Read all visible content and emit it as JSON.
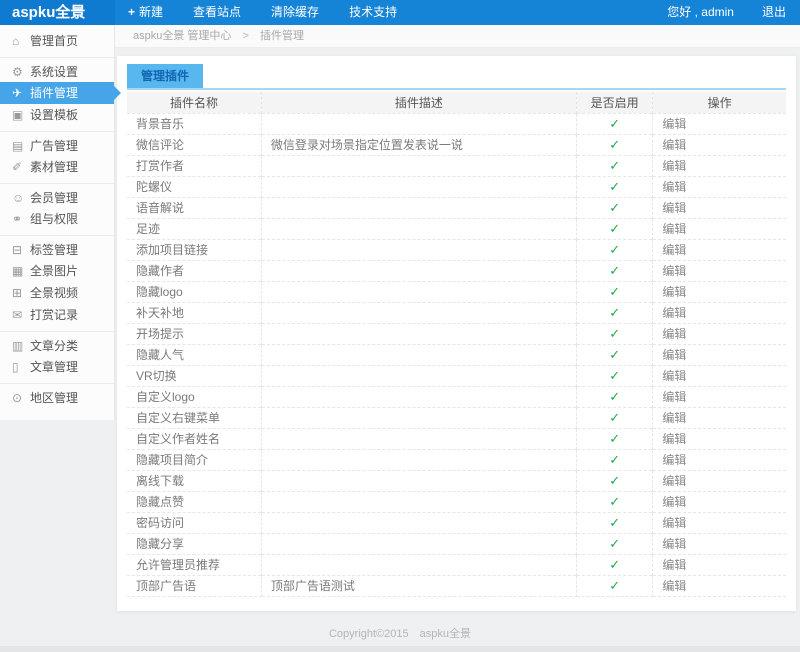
{
  "topbar": {
    "logo": "aspku全景",
    "menu": [
      {
        "id": "new-button",
        "icon_name": "plus-icon",
        "icon": "+",
        "label": "新建"
      },
      {
        "id": "view-site-button",
        "icon_name": "",
        "icon": "",
        "label": "查看站点"
      },
      {
        "id": "clear-cache-button",
        "icon_name": "",
        "icon": "",
        "label": "清除缓存"
      },
      {
        "id": "tech-support-button",
        "icon_name": "",
        "icon": "",
        "label": "技术支持"
      }
    ],
    "greeting": "您好 , admin",
    "logout": "退出"
  },
  "breadcrumb": {
    "prefix": "aspku全景 管理中心",
    "separator": ">",
    "current": "插件管理"
  },
  "sidebar": {
    "items": [
      {
        "id": "sidebar-item-home",
        "icon_name": "home-icon",
        "icon": "⌂",
        "label": "管理首页",
        "flags": ""
      },
      {
        "id": "sidebar-item-system-settings",
        "icon_name": "gear-icon",
        "icon": "⚙",
        "label": "系统设置",
        "flags": "divided"
      },
      {
        "id": "sidebar-item-plugin-manage",
        "icon_name": "paper-plane-icon",
        "icon": "✈",
        "label": "插件管理",
        "flags": "active"
      },
      {
        "id": "sidebar-item-template-settings",
        "icon_name": "template-icon",
        "icon": "▣",
        "label": "设置模板",
        "flags": ""
      },
      {
        "id": "sidebar-item-ad-manage",
        "icon_name": "ad-image-icon",
        "icon": "▤",
        "label": "广告管理",
        "flags": "divided"
      },
      {
        "id": "sidebar-item-material-manage",
        "icon_name": "link-icon",
        "icon": "✐",
        "label": "素材管理",
        "flags": ""
      },
      {
        "id": "sidebar-item-member-manage",
        "icon_name": "user-icon",
        "icon": "☺",
        "label": "会员管理",
        "flags": "divided"
      },
      {
        "id": "sidebar-item-group-permission",
        "icon_name": "share-nodes-icon",
        "icon": "⚭",
        "label": "组与权限",
        "flags": ""
      },
      {
        "id": "sidebar-item-tag-manage",
        "icon_name": "tag-icon",
        "icon": "⊟",
        "label": "标签管理",
        "flags": "divided"
      },
      {
        "id": "sidebar-item-panorama-image",
        "icon_name": "image-icon",
        "icon": "▦",
        "label": "全景图片",
        "flags": ""
      },
      {
        "id": "sidebar-item-panorama-video",
        "icon_name": "grid-icon",
        "icon": "⊞",
        "label": "全景视频",
        "flags": ""
      },
      {
        "id": "sidebar-item-reward-record",
        "icon_name": "mail-icon",
        "icon": "✉",
        "label": "打赏记录",
        "flags": ""
      },
      {
        "id": "sidebar-item-article-category",
        "icon_name": "book-icon",
        "icon": "▥",
        "label": "文章分类",
        "flags": "divided"
      },
      {
        "id": "sidebar-item-article-manage",
        "icon_name": "file-icon",
        "icon": "▯",
        "label": "文章管理",
        "flags": ""
      },
      {
        "id": "sidebar-item-region-manage",
        "icon_name": "clock-icon",
        "icon": "⊙",
        "label": "地区管理",
        "flags": "divided"
      }
    ]
  },
  "main": {
    "tab": "管理插件",
    "table": {
      "headers": [
        "插件名称",
        "插件描述",
        "是否启用",
        "操作"
      ],
      "check_glyph": "✓",
      "edit_label": "编辑",
      "rows": [
        {
          "name": "背景音乐",
          "desc": ""
        },
        {
          "name": "微信评论",
          "desc": "微信登录对场景指定位置发表说一说"
        },
        {
          "name": "打赏作者",
          "desc": ""
        },
        {
          "name": "陀螺仪",
          "desc": ""
        },
        {
          "name": "语音解说",
          "desc": ""
        },
        {
          "name": "足迹",
          "desc": ""
        },
        {
          "name": "添加项目链接",
          "desc": ""
        },
        {
          "name": "隐藏作者",
          "desc": ""
        },
        {
          "name": "隐藏logo",
          "desc": ""
        },
        {
          "name": "补天补地",
          "desc": ""
        },
        {
          "name": "开场提示",
          "desc": ""
        },
        {
          "name": "隐藏人气",
          "desc": ""
        },
        {
          "name": "VR切换",
          "desc": ""
        },
        {
          "name": "自定义logo",
          "desc": ""
        },
        {
          "name": "自定义右键菜单",
          "desc": ""
        },
        {
          "name": "自定义作者姓名",
          "desc": ""
        },
        {
          "name": "隐藏项目简介",
          "desc": ""
        },
        {
          "name": "离线下载",
          "desc": ""
        },
        {
          "name": "隐藏点赞",
          "desc": ""
        },
        {
          "name": "密码访问",
          "desc": ""
        },
        {
          "name": "隐藏分享",
          "desc": ""
        },
        {
          "name": "允许管理员推荐",
          "desc": ""
        },
        {
          "name": "顶部广告语",
          "desc": "顶部广告语测试"
        }
      ]
    }
  },
  "footer": {
    "copyright": "Copyright©2015　aspku全景"
  },
  "colors": {
    "topbar_blue": "#1583d6",
    "active_item_blue": "#46a4e9",
    "tab_blue": "#58b7ee",
    "tab_text_blue": "#1266b2",
    "tab_rule_blue": "#a5d8f3",
    "check_green": "#23a94d"
  }
}
